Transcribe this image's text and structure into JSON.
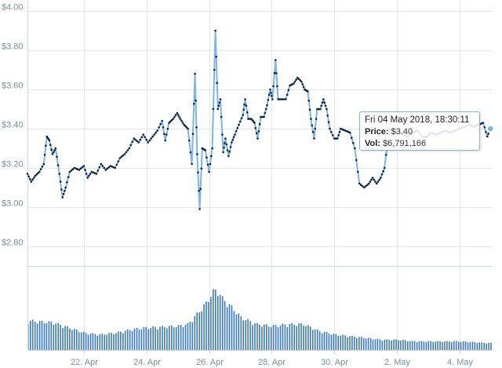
{
  "chart_data": {
    "type": "line",
    "y_axis": {
      "min": 2.8,
      "max": 4.0,
      "ticks": [
        "$2.80",
        "$3.00",
        "$3.20",
        "$3.40",
        "$3.60",
        "$3.80",
        "$4.00"
      ],
      "tick_values": [
        2.8,
        3.0,
        3.2,
        3.4,
        3.6,
        3.8,
        4.0
      ]
    },
    "x_axis": {
      "labels": [
        "22. Apr",
        "24. Apr",
        "26. Apr",
        "28. Apr",
        "30. Apr",
        "2. May",
        "4. May"
      ],
      "label_days": [
        2,
        4,
        6,
        8,
        10,
        12,
        14
      ],
      "range_days": [
        0.2,
        15.05
      ]
    },
    "grid": true,
    "colors": {
      "line": "#7cb5ec",
      "marker": "#0d233a",
      "volume": "#3d7ab8",
      "grid": "#e6e6e6",
      "axis": "#ccd6eb"
    },
    "price_anchors": [
      [
        0.2,
        3.17
      ],
      [
        0.32,
        3.13
      ],
      [
        0.45,
        3.16
      ],
      [
        0.58,
        3.18
      ],
      [
        0.72,
        3.22
      ],
      [
        0.82,
        3.36
      ],
      [
        0.9,
        3.34
      ],
      [
        1.0,
        3.27
      ],
      [
        1.1,
        3.3
      ],
      [
        1.22,
        3.17
      ],
      [
        1.32,
        3.05
      ],
      [
        1.42,
        3.1
      ],
      [
        1.55,
        3.18
      ],
      [
        1.7,
        3.2
      ],
      [
        1.85,
        3.19
      ],
      [
        2.0,
        3.21
      ],
      [
        2.12,
        3.15
      ],
      [
        2.25,
        3.18
      ],
      [
        2.4,
        3.17
      ],
      [
        2.55,
        3.22
      ],
      [
        2.7,
        3.19
      ],
      [
        2.85,
        3.21
      ],
      [
        3.0,
        3.2
      ],
      [
        3.15,
        3.25
      ],
      [
        3.3,
        3.27
      ],
      [
        3.45,
        3.3
      ],
      [
        3.6,
        3.35
      ],
      [
        3.75,
        3.33
      ],
      [
        3.9,
        3.37
      ],
      [
        4.05,
        3.33
      ],
      [
        4.2,
        3.36
      ],
      [
        4.35,
        3.39
      ],
      [
        4.5,
        3.44
      ],
      [
        4.6,
        3.34
      ],
      [
        4.72,
        3.43
      ],
      [
        4.85,
        3.45
      ],
      [
        4.98,
        3.48
      ],
      [
        5.08,
        3.45
      ],
      [
        5.2,
        3.42
      ],
      [
        5.32,
        3.4
      ],
      [
        5.45,
        3.22
      ],
      [
        5.55,
        3.68
      ],
      [
        5.62,
        3.27
      ],
      [
        5.7,
        2.99
      ],
      [
        5.78,
        3.3
      ],
      [
        5.88,
        3.29
      ],
      [
        6.0,
        3.18
      ],
      [
        6.1,
        3.3
      ],
      [
        6.2,
        3.9
      ],
      [
        6.28,
        3.5
      ],
      [
        6.36,
        3.55
      ],
      [
        6.45,
        3.28
      ],
      [
        6.52,
        3.35
      ],
      [
        6.62,
        3.26
      ],
      [
        6.72,
        3.33
      ],
      [
        6.82,
        3.37
      ],
      [
        6.95,
        3.42
      ],
      [
        7.08,
        3.47
      ],
      [
        7.15,
        3.55
      ],
      [
        7.25,
        3.45
      ],
      [
        7.35,
        3.45
      ],
      [
        7.45,
        3.43
      ],
      [
        7.55,
        3.35
      ],
      [
        7.65,
        3.46
      ],
      [
        7.75,
        3.46
      ],
      [
        7.85,
        3.52
      ],
      [
        7.95,
        3.6
      ],
      [
        8.02,
        3.55
      ],
      [
        8.12,
        3.75
      ],
      [
        8.2,
        3.55
      ],
      [
        8.32,
        3.55
      ],
      [
        8.45,
        3.55
      ],
      [
        8.58,
        3.62
      ],
      [
        8.7,
        3.63
      ],
      [
        8.82,
        3.66
      ],
      [
        8.95,
        3.64
      ],
      [
        9.05,
        3.6
      ],
      [
        9.15,
        3.59
      ],
      [
        9.25,
        3.45
      ],
      [
        9.35,
        3.35
      ],
      [
        9.45,
        3.5
      ],
      [
        9.55,
        3.5
      ],
      [
        9.65,
        3.55
      ],
      [
        9.75,
        3.5
      ],
      [
        9.85,
        3.4
      ],
      [
        10.0,
        3.35
      ],
      [
        10.1,
        3.35
      ],
      [
        10.2,
        3.4
      ],
      [
        10.35,
        3.39
      ],
      [
        10.5,
        3.38
      ],
      [
        10.65,
        3.3
      ],
      [
        10.8,
        3.12
      ],
      [
        10.95,
        3.1
      ],
      [
        11.1,
        3.12
      ],
      [
        11.22,
        3.15
      ],
      [
        11.35,
        3.12
      ],
      [
        11.48,
        3.15
      ],
      [
        11.6,
        3.2
      ],
      [
        11.75,
        3.4
      ],
      [
        11.9,
        3.39
      ],
      [
        12.05,
        3.38
      ],
      [
        12.2,
        3.37
      ],
      [
        12.35,
        3.36
      ],
      [
        12.5,
        3.38
      ],
      [
        12.65,
        3.39
      ],
      [
        12.8,
        3.36
      ],
      [
        12.95,
        3.36
      ],
      [
        13.1,
        3.38
      ],
      [
        13.25,
        3.37
      ],
      [
        13.4,
        3.38
      ],
      [
        13.55,
        3.39
      ],
      [
        13.7,
        3.38
      ],
      [
        13.85,
        3.39
      ],
      [
        14.0,
        3.4
      ],
      [
        14.15,
        3.41
      ],
      [
        14.3,
        3.42
      ],
      [
        14.45,
        3.41
      ],
      [
        14.6,
        3.42
      ],
      [
        14.75,
        3.43
      ],
      [
        14.88,
        3.36
      ],
      [
        14.98,
        3.4
      ]
    ],
    "volume_anchors": [
      [
        0.2,
        0.34
      ],
      [
        1.0,
        0.32
      ],
      [
        1.5,
        0.26
      ],
      [
        2.0,
        0.2
      ],
      [
        2.5,
        0.18
      ],
      [
        3.0,
        0.2
      ],
      [
        3.5,
        0.24
      ],
      [
        4.0,
        0.26
      ],
      [
        4.5,
        0.27
      ],
      [
        5.0,
        0.28
      ],
      [
        5.3,
        0.3
      ],
      [
        5.6,
        0.42
      ],
      [
        5.9,
        0.55
      ],
      [
        6.1,
        0.68
      ],
      [
        6.25,
        0.7
      ],
      [
        6.4,
        0.6
      ],
      [
        6.7,
        0.5
      ],
      [
        7.0,
        0.38
      ],
      [
        7.5,
        0.3
      ],
      [
        8.0,
        0.28
      ],
      [
        8.5,
        0.3
      ],
      [
        9.0,
        0.3
      ],
      [
        9.5,
        0.22
      ],
      [
        10.0,
        0.18
      ],
      [
        10.5,
        0.16
      ],
      [
        11.0,
        0.14
      ],
      [
        11.5,
        0.12
      ],
      [
        12.0,
        0.12
      ],
      [
        12.5,
        0.1
      ],
      [
        13.0,
        0.1
      ],
      [
        13.5,
        0.1
      ],
      [
        14.0,
        0.1
      ],
      [
        14.5,
        0.09
      ],
      [
        14.98,
        0.08
      ]
    ],
    "tooltip": {
      "date": "Fri 04 May 2018, 18:30:11",
      "price_label": "Price:",
      "price_value": "$3.40",
      "vol_label": "Vol:",
      "vol_value": "$6,791,166"
    }
  }
}
